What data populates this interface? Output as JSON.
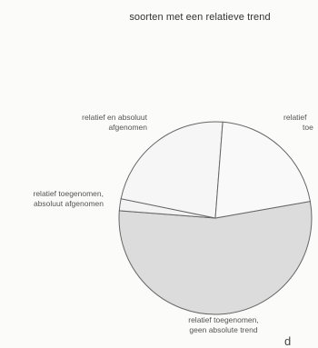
{
  "chart_data": {
    "type": "pie",
    "title": "soorten met een relatieve trend",
    "slices": [
      {
        "label": "relatief toegenomen, geen absolute trend",
        "value": 54,
        "color": "#dcdcdc"
      },
      {
        "label": "relatief toegenomen, absoluut afgenomen",
        "value": 2,
        "color": "#f3f3f3"
      },
      {
        "label": "relatief en absoluut afgenomen",
        "value": 23,
        "color": "#f6f6f6"
      },
      {
        "label": "relatief toe",
        "value": 21,
        "color": "#f9f9f9"
      }
    ],
    "labels_visible": [
      [
        "relatief en absoluut",
        "afgenomen"
      ],
      [
        "relatief",
        "toe"
      ],
      [
        "relatief toegenomen,",
        "absoluut afgenomen"
      ],
      [
        "relatief toegenomen,",
        "geen absolute trend"
      ]
    ],
    "corner_text": "d"
  }
}
